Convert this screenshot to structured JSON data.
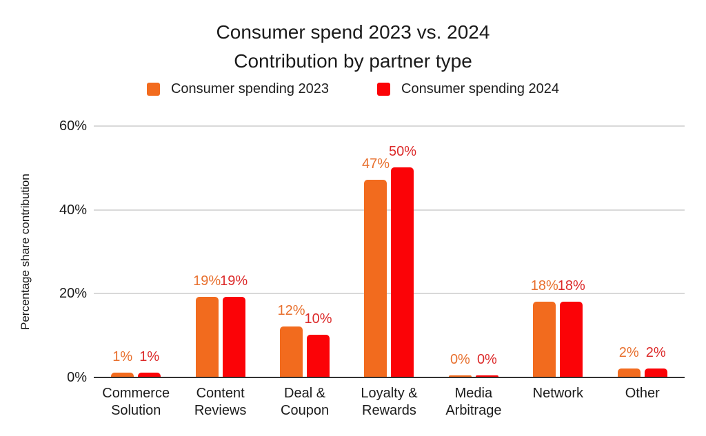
{
  "title": {
    "line1": "Consumer spend 2023 vs. 2024",
    "line2": "Contribution by partner type"
  },
  "legend": {
    "items": [
      {
        "label": "Consumer spending 2023",
        "color": "#F26B1E"
      },
      {
        "label": "Consumer spending 2024",
        "color": "#FB0307"
      }
    ]
  },
  "chart_data": {
    "type": "bar",
    "title": "Consumer spend 2023 vs. 2024",
    "subtitle": "Contribution by partner type",
    "categories": [
      "Commerce Solution",
      "Content Reviews",
      "Deal & Coupon",
      "Loyalty & Rewards",
      "Media Arbitrage",
      "Network",
      "Other"
    ],
    "series": [
      {
        "name": "Consumer spending 2023",
        "color": "#F26B1E",
        "label_color": "#E8702E",
        "values": [
          1,
          19,
          12,
          47,
          0,
          18,
          2
        ],
        "labels": [
          "1%",
          "19%",
          "12%",
          "47%",
          "0%",
          "18%",
          "2%"
        ]
      },
      {
        "name": "Consumer spending 2024",
        "color": "#FB0307",
        "label_color": "#DC2A2A",
        "values": [
          1,
          19,
          10,
          50,
          0,
          18,
          2
        ],
        "labels": [
          "1%",
          "19%",
          "10%",
          "50%",
          "0%",
          "18%",
          "2%"
        ]
      }
    ],
    "xlabel": "",
    "ylabel": "Percentage share contribution",
    "ylim": [
      0,
      60
    ],
    "yticks": [
      {
        "value": 0,
        "label": "0%"
      },
      {
        "value": 20,
        "label": "20%"
      },
      {
        "value": 40,
        "label": "40%"
      },
      {
        "value": 60,
        "label": "60%"
      }
    ],
    "grid": true,
    "legend_position": "top"
  }
}
